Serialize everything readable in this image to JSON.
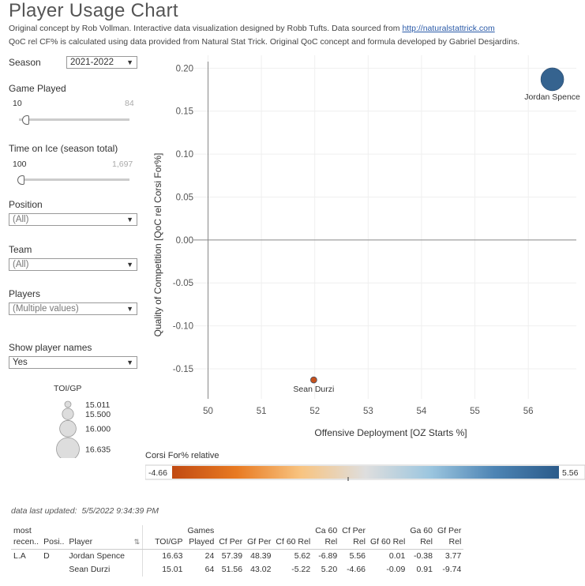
{
  "header": {
    "title": "Player Usage Chart",
    "line1_text": "Original concept by Rob Vollman.  Interactive data visualization designed by Robb Tufts.  Data sourced from ",
    "line1_link": "http://naturalstattrick.com",
    "line2_text": "QoC rel CF% is calculated using data provided from Natural Stat Trick.  Original QoC concept and formula developed by Gabriel Desjardins."
  },
  "filters": {
    "season": {
      "label": "Season",
      "value": "2021-2022"
    },
    "games_played": {
      "label": "Game Played",
      "min": "10",
      "max": "84",
      "value": 10
    },
    "toi": {
      "label": "Time on Ice (season total)",
      "min": "100",
      "max": "1,697",
      "value": 100
    },
    "position": {
      "label": "Position",
      "value": "(All)"
    },
    "team": {
      "label": "Team",
      "value": "(All)"
    },
    "players": {
      "label": "Players",
      "value": "(Multiple values)"
    },
    "show_names": {
      "label": "Show player names",
      "value": "Yes"
    }
  },
  "size_legend": {
    "title": "TOI/GP",
    "items": [
      "15.011",
      "15.500",
      "16.000",
      "16.635"
    ],
    "values": [
      15.011,
      15.5,
      16.0,
      16.635
    ]
  },
  "color_legend": {
    "title": "Corsi For% relative",
    "min_label": "-4.66",
    "max_label": "5.56",
    "min": -4.66,
    "max": 5.56,
    "colors": [
      "#c14a12",
      "#e87a22",
      "#f8c481",
      "#dedede",
      "#9cc6df",
      "#4d84b4",
      "#2b5b8a"
    ]
  },
  "chart_data": {
    "type": "scatter",
    "xlabel": "Offensive Deployment [OZ Starts %]",
    "ylabel": "Quality of Competition [QoC rel Corsi For%]",
    "xlim": [
      49.8,
      56.9
    ],
    "ylim": [
      -0.185,
      0.215
    ],
    "xticks": [
      50,
      51,
      52,
      53,
      54,
      55,
      56
    ],
    "yticks": [
      -0.15,
      -0.1,
      -0.05,
      0.0,
      0.05,
      0.1,
      0.15,
      0.2
    ],
    "ytick_labels": [
      "-0.15",
      "-0.10",
      "-0.05",
      "0.00",
      "0.05",
      "0.10",
      "0.15",
      "0.20"
    ],
    "points": [
      {
        "name": "Jordan Spence",
        "x": 56.45,
        "y": 0.187,
        "toi_gp": 16.63,
        "cf_rel": 5.56,
        "color": "#2b5b8a"
      },
      {
        "name": "Sean Durzi",
        "x": 51.98,
        "y": -0.163,
        "toi_gp": 15.01,
        "cf_rel": -4.66,
        "color": "#c14a12"
      }
    ]
  },
  "table": {
    "updated_label": "data last updated:",
    "updated_value": "5/5/2022 9:34:39 PM",
    "headers": [
      [
        "most",
        "recen.."
      ],
      [
        "Posi.."
      ],
      [
        "Player"
      ],
      [
        "TOI/GP"
      ],
      [
        "Games",
        "Played"
      ],
      [
        "Cf Per"
      ],
      [
        "Gf Per"
      ],
      [
        "Cf 60 Rel"
      ],
      [
        "Ca 60",
        "Rel"
      ],
      [
        "Cf Per",
        "Rel"
      ],
      [
        "Gf 60 Rel"
      ],
      [
        "Ga 60",
        "Rel"
      ],
      [
        "Gf Per",
        "Rel"
      ]
    ],
    "rows": [
      [
        "L.A",
        "D",
        "Jordan Spence",
        "16.63",
        "24",
        "57.39",
        "48.39",
        "5.62",
        "-6.89",
        "5.56",
        "0.01",
        "-0.38",
        "3.77"
      ],
      [
        "",
        "",
        "Sean Durzi",
        "15.01",
        "64",
        "51.56",
        "43.02",
        "-5.22",
        "5.20",
        "-4.66",
        "-0.09",
        "0.91",
        "-9.74"
      ]
    ]
  }
}
